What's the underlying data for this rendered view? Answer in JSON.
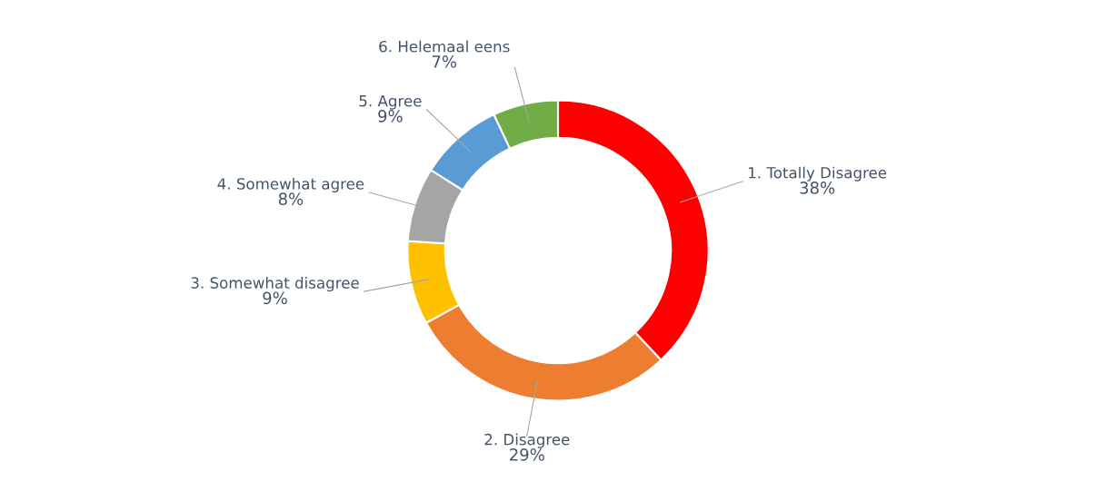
{
  "chart_data": {
    "type": "donut",
    "categories": [
      "1. Totally Disagree",
      "2. Disagree",
      "3. Somewhat disagree",
      "4. Somewhat agree",
      "5. Agree",
      "6. Helemaal eens"
    ],
    "values": [
      38,
      29,
      9,
      8,
      9,
      7
    ],
    "value_labels": [
      "38%",
      "29%",
      "9%",
      "8%",
      "9%",
      "7%"
    ],
    "colors": [
      "#ff0000",
      "#ed7d31",
      "#ffc000",
      "#a5a5a5",
      "#5b9bd5",
      "#70ad47"
    ],
    "legend": false
  }
}
